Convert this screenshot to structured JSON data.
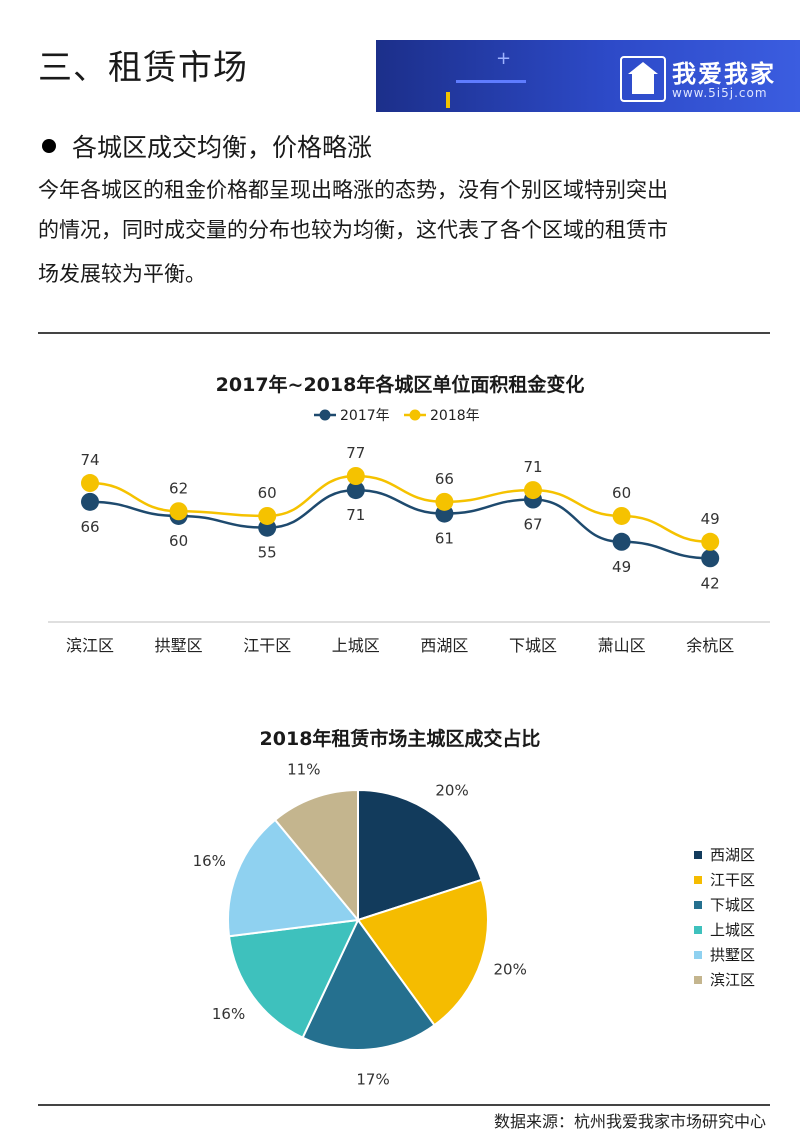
{
  "header": {
    "section_title": "三、租赁市场",
    "brand_name": "我爱我家",
    "brand_url": "www.5i5j.com",
    "brand_icon": "house-logo-icon"
  },
  "bullet": {
    "heading": "各城区成交均衡，价格略涨",
    "paragraph_lines": [
      "今年各城区的租金价格都呈现出略涨的态势，没有个别区域特别突出",
      "的情况，同时成交量的分布也较为均衡，这代表了各个区域的租赁市",
      "场发展较为平衡。"
    ]
  },
  "chart_data": [
    {
      "type": "line",
      "title": "2017年~2018年各城区单位面积租金变化",
      "categories": [
        "滨江区",
        "拱墅区",
        "江干区",
        "上城区",
        "西湖区",
        "下城区",
        "萧山区",
        "余杭区"
      ],
      "series": [
        {
          "name": "2017年",
          "values": [
            66,
            60,
            55,
            71,
            61,
            67,
            49,
            42
          ],
          "color": "#1e4a6e"
        },
        {
          "name": "2018年",
          "values": [
            74,
            62,
            60,
            77,
            66,
            71,
            60,
            49
          ],
          "color": "#f5c200"
        }
      ],
      "legend": "top",
      "grid": false
    },
    {
      "type": "pie",
      "title": "2018年租赁市场主城区成交占比",
      "slices": [
        {
          "label": "西湖区",
          "value": 20,
          "display": "20%",
          "color": "#123b5c"
        },
        {
          "label": "江干区",
          "value": 20,
          "display": "20%",
          "color": "#f5bc00"
        },
        {
          "label": "下城区",
          "value": 17,
          "display": "17%",
          "color": "#25708f"
        },
        {
          "label": "上城区",
          "value": 16,
          "display": "16%",
          "color": "#3ec1bd"
        },
        {
          "label": "拱墅区",
          "value": 16,
          "display": "16%",
          "color": "#8fd1f0"
        },
        {
          "label": "滨江区",
          "value": 11,
          "display": "11%",
          "color": "#c4b58e"
        }
      ],
      "legend": "right"
    }
  ],
  "footer": {
    "source": "数据来源：杭州我爱我家市场研究中心"
  }
}
